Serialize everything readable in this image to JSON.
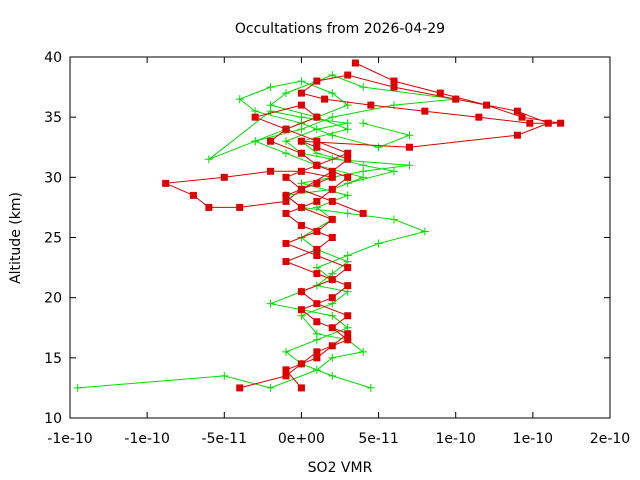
{
  "chart_data": {
    "type": "line",
    "title": "Occultations from 2026-04-29",
    "xlabel": "SO2 VMR",
    "ylabel": "Altitude (km)",
    "xlim": [
      -1.5e-10,
      2e-10
    ],
    "ylim": [
      10,
      40
    ],
    "x_tick_values": [
      -1.5e-10,
      -1e-10,
      -5e-11,
      0,
      5e-11,
      1e-10,
      1.5e-10,
      2e-10
    ],
    "x_tick_labels": [
      "-1e-10",
      "-1e-10",
      "-5e-11",
      "0e+00",
      "5e-11",
      "1e-10",
      "1e-10",
      "2e-10"
    ],
    "y_tick_values": [
      10,
      15,
      20,
      25,
      30,
      35,
      40
    ],
    "y_tick_labels": [
      "10",
      "15",
      "20",
      "25",
      "30",
      "35",
      "40"
    ],
    "grid": false,
    "legend": "none",
    "colors": {
      "green_series": "#00dd00",
      "red_series": "#dd0000",
      "frame": "#000000"
    },
    "series": [
      {
        "color": "#00dd00",
        "marker": "plus",
        "x": [
          -1.45e-10,
          -5e-11,
          -2e-11,
          1e-11,
          2e-11,
          4e-11,
          3e-11,
          1e-11,
          0,
          2e-11,
          3e-11,
          1e-11,
          2e-11,
          3e-11,
          1e-11,
          0,
          2e-11,
          1e-11,
          3e-11,
          0,
          2e-11,
          4e-11,
          7e-11,
          2e-11,
          0,
          -1e-11,
          1e-11,
          3e-11,
          0,
          -2e-11,
          -6e-11,
          -3e-11,
          0,
          2e-11,
          6e-11,
          1e-10,
          4e-11,
          2e-11,
          -1e-11,
          -2e-11,
          1e-11,
          3e-11,
          0,
          1e-11,
          4e-11,
          6e-11,
          3e-11
        ],
        "y": [
          12.5,
          13.5,
          12.5,
          14,
          15,
          15.5,
          16.5,
          17,
          18.5,
          19.5,
          20.5,
          21,
          22,
          23,
          24,
          25,
          26.5,
          27.5,
          28.5,
          29.5,
          30,
          30.5,
          31,
          31.5,
          32,
          33,
          34,
          34.5,
          35,
          35.5,
          31.5,
          33,
          34,
          35,
          36,
          36.5,
          37.5,
          38.5,
          37,
          36,
          35,
          34,
          33,
          32,
          31,
          30.5,
          29.5
        ]
      },
      {
        "color": "#00dd00",
        "marker": "plus",
        "x": [
          4.5e-11,
          2e-11,
          0,
          -1e-11,
          1e-11,
          3e-11,
          2e-11,
          -2e-11,
          0,
          2e-11,
          1e-11,
          3e-11,
          5e-11,
          8e-11,
          6e-11,
          3e-11,
          0,
          -1e-11,
          2e-11,
          4e-11,
          1e-11,
          -1e-11,
          -3e-11,
          -1e-11,
          1e-11,
          3e-11,
          2e-11,
          0,
          -2e-11,
          -4e-11,
          -3e-11,
          0,
          2e-11,
          5e-11,
          7e-11,
          4e-11
        ],
        "y": [
          12.5,
          13.5,
          14.5,
          15.5,
          16.5,
          17.5,
          18.5,
          19.5,
          20.5,
          21.5,
          22.5,
          23.5,
          24.5,
          25.5,
          26.5,
          27,
          27.5,
          28.5,
          29,
          30,
          31,
          32,
          33,
          34,
          35,
          36,
          37,
          38,
          37.5,
          36.5,
          35.5,
          34.5,
          33.5,
          32.5,
          33.5,
          34.5
        ]
      },
      {
        "color": "#dd0000",
        "marker": "square",
        "x": [
          -4e-11,
          -1e-11,
          0,
          1e-11,
          3e-11,
          2e-11,
          3e-11,
          1e-11,
          0,
          2e-11,
          3e-11,
          1e-11,
          -1e-11,
          1e-11,
          2e-11,
          0,
          -1e-11,
          1e-11,
          2e-11,
          0,
          -2e-11,
          -5e-11,
          -8.8e-11,
          -7e-11,
          -6e-11,
          -4e-11,
          -1e-11,
          0,
          2e-11,
          3e-11,
          1e-11,
          0,
          7e-11,
          1.4e-10,
          1.6e-10,
          1.4e-10,
          1e-10,
          6e-11,
          3e-11,
          1e-11,
          0,
          1.5e-11,
          4.5e-11,
          8e-11,
          1.15e-10,
          1.48e-10,
          1.68e-10,
          1.43e-10,
          1.2e-10,
          9e-11,
          6e-11,
          3.5e-11
        ],
        "y": [
          12.5,
          13.5,
          14.5,
          15.5,
          16.5,
          17.5,
          18.5,
          19.5,
          20.5,
          21.5,
          22.5,
          23.5,
          24.5,
          25.5,
          26.5,
          27.5,
          28.5,
          29.5,
          30,
          30.5,
          30.5,
          30,
          29.5,
          28.5,
          27.5,
          27.5,
          28,
          29,
          30.5,
          31.5,
          32.5,
          33,
          32.5,
          33.5,
          34.5,
          35.5,
          36.5,
          37.5,
          38.5,
          38,
          37,
          36.5,
          36,
          35.5,
          35,
          34.5,
          34.5,
          35,
          36,
          37,
          38,
          39.5
        ]
      },
      {
        "color": "#dd0000",
        "marker": "square",
        "x": [
          0,
          -1e-11,
          1e-11,
          2e-11,
          3e-11,
          1e-11,
          0,
          2e-11,
          3e-11,
          1e-11,
          -1e-11,
          1e-11,
          2e-11,
          0,
          -1e-11,
          1e-11,
          2e-11,
          3e-11,
          1e-11,
          0,
          -2e-11,
          -1e-11,
          1e-11,
          0,
          -3e-11,
          -1e-11,
          1e-11,
          3e-11,
          1e-11,
          -1e-11,
          0,
          2e-11,
          4e-11
        ],
        "y": [
          12.5,
          14,
          15,
          16,
          17,
          18,
          19,
          20,
          21,
          22,
          23,
          24,
          25,
          26,
          27,
          28,
          29,
          30,
          31,
          32,
          33,
          34,
          35,
          36,
          35,
          34,
          33,
          32,
          31,
          30,
          29,
          28,
          27
        ]
      }
    ]
  }
}
